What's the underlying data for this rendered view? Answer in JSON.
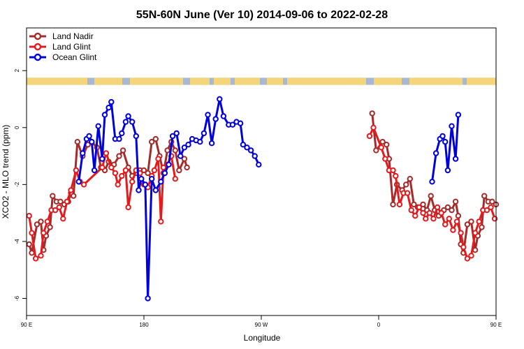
{
  "chart_data": {
    "type": "line",
    "title": "55N-60N June (Ver 10)   2014-09-06 to 2022-02-28",
    "xlabel": "Longitude",
    "ylabel": "XCO2 - MLO trend (ppm)",
    "xlim": [
      90,
      450
    ],
    "ylim": [
      -6.6,
      3.5
    ],
    "x_ticks": [
      {
        "value": 90,
        "label": "90 E"
      },
      {
        "value": 180,
        "label": "180"
      },
      {
        "value": 270,
        "label": "90 W"
      },
      {
        "value": 360,
        "label": "0"
      },
      {
        "value": 450,
        "label": "90 E"
      },
      {
        "value": 540,
        "label": "180"
      }
    ],
    "y_ticks": [
      {
        "value": -6,
        "label": "-6"
      },
      {
        "value": -4,
        "label": "-4"
      },
      {
        "value": -2,
        "label": "-2"
      },
      {
        "value": 0,
        "label": "0"
      },
      {
        "value": 2,
        "label": "2"
      }
    ],
    "grid": false,
    "legend_position": "top-left",
    "land_mask_band": {
      "ymin": 1.5,
      "ymax": 1.75,
      "land_color": "#f5d57a",
      "ocean_color": "#a8b8d0"
    },
    "series": [
      {
        "name": "Land Nadir",
        "color": "#a52a2a",
        "points": [
          [
            92,
            -4.1
          ],
          [
            94,
            -4.4
          ],
          [
            98,
            -3.4
          ],
          [
            101,
            -3.3
          ],
          [
            103,
            -4.3
          ],
          [
            105,
            -3.8
          ],
          [
            108,
            -3.5
          ],
          [
            110,
            -2.4
          ],
          [
            113,
            -2.6
          ],
          [
            116,
            -2.6
          ],
          [
            119,
            -2.7
          ],
          [
            122,
            -2.6
          ],
          [
            124,
            -2.3
          ],
          [
            126,
            -2.4
          ],
          [
            129,
            -0.5
          ],
          [
            133,
            -1.0
          ],
          [
            137,
            -0.6
          ],
          [
            140,
            -0.5
          ],
          [
            144,
            -0.7
          ],
          [
            147,
            -1.4
          ],
          [
            150,
            -1.5
          ],
          [
            153,
            -1.2
          ],
          [
            157,
            -1.3
          ],
          [
            161,
            -1.0
          ],
          [
            164,
            -0.8
          ],
          [
            168,
            -1.4
          ],
          [
            171,
            -1.7
          ],
          [
            174,
            -1.6
          ],
          [
            177,
            -1.5
          ],
          [
            180,
            -1.5
          ],
          [
            183,
            -1.6
          ],
          [
            186,
            -0.5
          ],
          [
            189,
            -0.4
          ],
          [
            192,
            -1.0
          ],
          [
            195,
            -1.6
          ],
          [
            198,
            -0.8
          ],
          [
            201,
            -0.5
          ],
          [
            204,
            -0.8
          ],
          [
            207,
            -1.5
          ],
          [
            211,
            -1.1
          ],
          [
            213,
            -1.4
          ],
          [
            355,
            0.5
          ],
          [
            358,
            -0.8
          ],
          [
            363,
            -0.5
          ],
          [
            366,
            -0.6
          ],
          [
            368,
            -1.1
          ],
          [
            371,
            -2.7
          ],
          [
            374,
            -2.0
          ],
          [
            378,
            -2.2
          ],
          [
            381,
            -2.0
          ],
          [
            384,
            -1.8
          ],
          [
            387,
            -2.7
          ],
          [
            390,
            -2.8
          ],
          [
            394,
            -2.7
          ],
          [
            397,
            -2.9
          ],
          [
            400,
            -2.4
          ],
          [
            403,
            -2.9
          ],
          [
            406,
            -3.1
          ],
          [
            410,
            -2.9
          ],
          [
            413,
            -2.8
          ],
          [
            416,
            -2.9
          ],
          [
            419,
            -2.6
          ],
          [
            421,
            -3.1
          ],
          [
            423,
            -4.1
          ],
          [
            425,
            -4.4
          ],
          [
            428,
            -3.4
          ],
          [
            431,
            -3.3
          ],
          [
            434,
            -4.3
          ],
          [
            436,
            -3.8
          ],
          [
            439,
            -3.5
          ],
          [
            441,
            -2.4
          ],
          [
            444,
            -2.6
          ],
          [
            447,
            -2.6
          ],
          [
            450,
            -2.7
          ]
        ]
      },
      {
        "name": "Land Glint",
        "color": "#e41a1c",
        "points": [
          [
            92,
            -3.1
          ],
          [
            94,
            -3.7
          ],
          [
            97,
            -4.6
          ],
          [
            101,
            -4.5
          ],
          [
            103,
            -3.7
          ],
          [
            106,
            -3.3
          ],
          [
            109,
            -2.9
          ],
          [
            112,
            -2.9
          ],
          [
            115,
            -2.8
          ],
          [
            118,
            -3.2
          ],
          [
            121,
            -2.6
          ],
          [
            124,
            -2.2
          ],
          [
            128,
            -1.5
          ],
          [
            131,
            -1.9
          ],
          [
            134,
            -2.0
          ],
          [
            148,
            -1.4
          ],
          [
            151,
            -0.9
          ],
          [
            155,
            -1.4
          ],
          [
            158,
            -1.6
          ],
          [
            160,
            -2.0
          ],
          [
            163,
            -1.7
          ],
          [
            166,
            -1.5
          ],
          [
            168,
            -2.8
          ],
          [
            171,
            -1.9
          ],
          [
            174,
            -1.5
          ],
          [
            177,
            -1.6
          ],
          [
            180,
            -2.0
          ],
          [
            183,
            -2.1
          ],
          [
            186,
            -1.7
          ],
          [
            188,
            -1.5
          ],
          [
            191,
            -1.1
          ],
          [
            193,
            -3.3
          ],
          [
            195,
            -1.4
          ],
          [
            198,
            -1.3
          ],
          [
            201,
            -1.0
          ],
          [
            204,
            -1.8
          ],
          [
            353,
            -0.3
          ],
          [
            356,
            0.0
          ],
          [
            362,
            -0.7
          ],
          [
            365,
            -1.1
          ],
          [
            368,
            -1.5
          ],
          [
            371,
            -1.5
          ],
          [
            373,
            -1.7
          ],
          [
            376,
            -2.7
          ],
          [
            379,
            -2.3
          ],
          [
            382,
            -2.3
          ],
          [
            385,
            -2.9
          ],
          [
            388,
            -3.1
          ],
          [
            391,
            -2.8
          ],
          [
            394,
            -3.0
          ],
          [
            396,
            -3.2
          ],
          [
            399,
            -3.0
          ],
          [
            402,
            -3.2
          ],
          [
            405,
            -2.8
          ],
          [
            408,
            -3.0
          ],
          [
            411,
            -3.4
          ],
          [
            414,
            -3.2
          ],
          [
            417,
            -3.6
          ],
          [
            420,
            -3.3
          ],
          [
            423,
            -3.7
          ],
          [
            425,
            -4.2
          ],
          [
            428,
            -4.6
          ],
          [
            431,
            -4.5
          ],
          [
            434,
            -3.7
          ],
          [
            437,
            -3.3
          ],
          [
            440,
            -2.9
          ],
          [
            443,
            -2.9
          ],
          [
            446,
            -2.8
          ],
          [
            449,
            -3.2
          ]
        ]
      },
      {
        "name": "Ocean Glint",
        "color": "#0000dd",
        "points": [
          [
            130,
            -1.9
          ],
          [
            133,
            -0.9
          ],
          [
            136,
            -0.4
          ],
          [
            138,
            -0.3
          ],
          [
            140,
            -0.5
          ],
          [
            142,
            -1.5
          ],
          [
            145,
            0.05
          ],
          [
            148,
            -1.1
          ],
          [
            150,
            0.45
          ],
          [
            153,
            0.7
          ],
          [
            155,
            0.9
          ],
          [
            158,
            -0.4
          ],
          [
            161,
            -0.4
          ],
          [
            163,
            -0.2
          ],
          [
            166,
            0.2
          ],
          [
            168,
            0.4
          ],
          [
            171,
            0.2
          ],
          [
            174,
            -0.3
          ],
          [
            176,
            -2.2
          ],
          [
            178,
            -1.8
          ],
          [
            181,
            -2.0
          ],
          [
            183,
            -6.0
          ],
          [
            186,
            -1.8
          ],
          [
            189,
            -2.2
          ],
          [
            193,
            -1.9
          ],
          [
            196,
            -1.6
          ],
          [
            199,
            -1.3
          ],
          [
            202,
            -0.3
          ],
          [
            205,
            -0.2
          ],
          [
            208,
            -1.0
          ],
          [
            211,
            -0.7
          ],
          [
            214,
            -0.6
          ],
          [
            217,
            -0.4
          ],
          [
            220,
            -0.45
          ],
          [
            223,
            -0.5
          ],
          [
            226,
            -0.2
          ],
          [
            229,
            0.45
          ],
          [
            232,
            -0.55
          ],
          [
            235,
            0.3
          ],
          [
            238,
            1.0
          ],
          [
            241,
            0.4
          ],
          [
            245,
            0.1
          ],
          [
            248,
            0.1
          ],
          [
            251,
            0.2
          ],
          [
            254,
            0.15
          ],
          [
            256,
            -0.6
          ],
          [
            259,
            -0.7
          ],
          [
            262,
            -0.8
          ],
          [
            265,
            -1.0
          ],
          [
            268,
            -1.3
          ],
          [
            401,
            -1.9
          ],
          [
            404,
            -0.9
          ],
          [
            407,
            -0.4
          ],
          [
            409,
            -0.3
          ],
          [
            411,
            -0.5
          ],
          [
            413,
            -1.5
          ],
          [
            416,
            0.05
          ],
          [
            419,
            -1.1
          ],
          [
            421,
            0.45
          ]
        ]
      }
    ]
  }
}
